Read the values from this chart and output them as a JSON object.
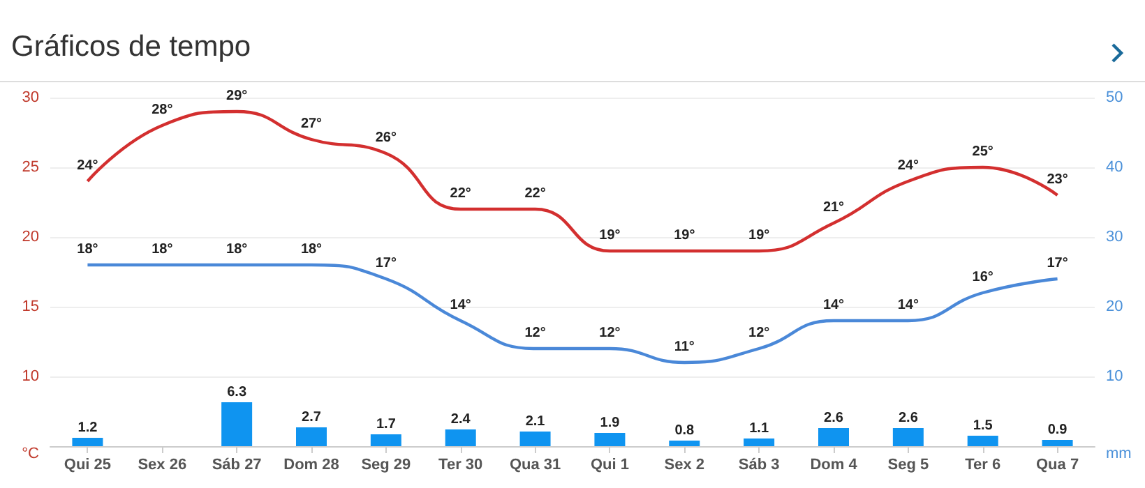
{
  "chart_data": {
    "type": "line",
    "title": "Gráficos de tempo",
    "ylabel": "°C",
    "y2label": "mm",
    "categories": [
      "Qui 25",
      "Sex 26",
      "Sáb 27",
      "Dom 28",
      "Seg 29",
      "Ter 30",
      "Qua 31",
      "Qui 1",
      "Sex 2",
      "Sáb 3",
      "Dom 4",
      "Seg 5",
      "Ter 6",
      "Qua 7"
    ],
    "ylim": [
      5,
      30
    ],
    "yticks": [
      10,
      15,
      20,
      25,
      30
    ],
    "y2lim": [
      0,
      50
    ],
    "y2ticks": [
      10,
      20,
      30,
      40,
      50
    ],
    "grid": "y",
    "marker": "none",
    "line_style": "solid",
    "series": [
      {
        "color": "#d32f2f",
        "values": [
          24,
          28,
          29,
          27,
          26,
          22,
          22,
          19,
          19,
          19,
          21,
          24,
          25,
          23
        ],
        "value_labels": [
          "24°",
          "28°",
          "29°",
          "27°",
          "26°",
          "22°",
          "22°",
          "19°",
          "19°",
          "19°",
          "21°",
          "24°",
          "25°",
          "23°"
        ]
      },
      {
        "color": "#4a88d8",
        "values": [
          18,
          18,
          18,
          18,
          17,
          14,
          12,
          12,
          11,
          12,
          14,
          14,
          16,
          17
        ],
        "value_labels": [
          "18°",
          "18°",
          "18°",
          "18°",
          "17°",
          "14°",
          "12°",
          "12°",
          "11°",
          "12°",
          "14°",
          "14°",
          "16°",
          "17°"
        ]
      },
      {
        "type": "bar",
        "axis": "y2",
        "color": "#0f94f0",
        "values": [
          1.2,
          null,
          6.3,
          2.7,
          1.7,
          2.4,
          2.1,
          1.9,
          0.8,
          1.1,
          2.6,
          2.6,
          1.5,
          0.9
        ],
        "value_labels": [
          "1.2",
          null,
          "6.3",
          "2.7",
          "1.7",
          "2.4",
          "2.1",
          "1.9",
          "0.8",
          "1.1",
          "2.6",
          "2.6",
          "1.5",
          "0.9"
        ]
      }
    ]
  }
}
